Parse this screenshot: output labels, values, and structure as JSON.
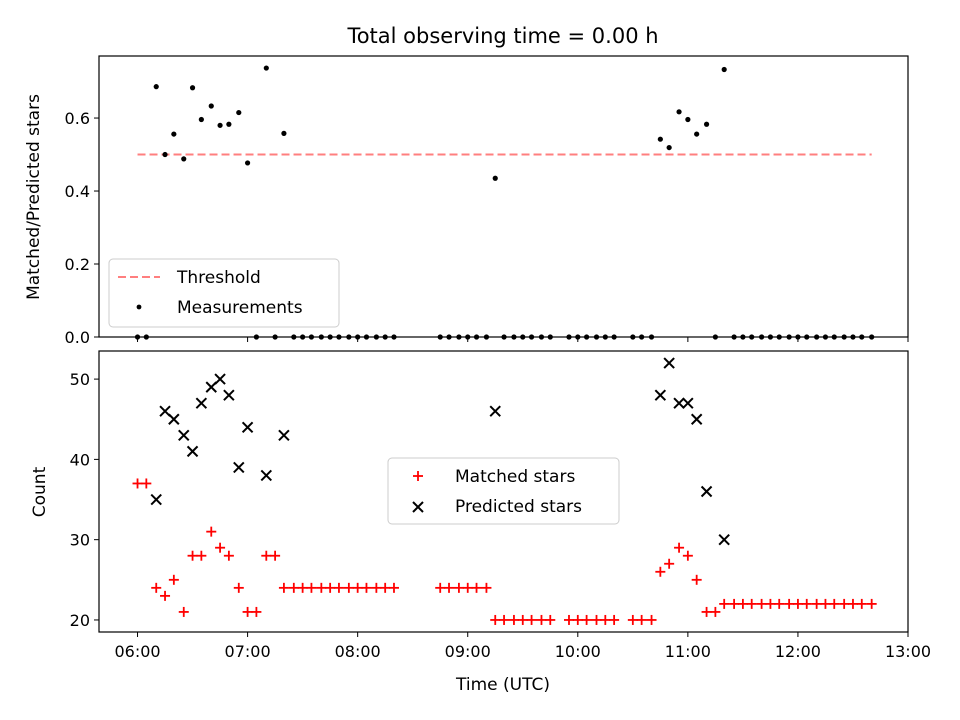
{
  "chart_data": [
    {
      "type": "scatter",
      "title": "Total observing time = 0.00 h",
      "ylabel": "Matched/Predicted stars",
      "xlim": [
        5.65,
        13.0
      ],
      "ylim": [
        0.0,
        0.77
      ],
      "yticks": [
        "0.0",
        "0.2",
        "0.4",
        "0.6"
      ],
      "ytick_values": [
        0.0,
        0.2,
        0.4,
        0.6
      ],
      "legend_position": "lower-left",
      "threshold": {
        "name": "Threshold",
        "value": 0.5,
        "x_range": [
          6.0,
          12.67
        ],
        "color": "#ff7f7f",
        "style": "dashed"
      },
      "measurements": {
        "name": "Measurements",
        "color": "#000000",
        "x": [
          6.0,
          6.08,
          6.17,
          6.25,
          6.33,
          6.42,
          6.5,
          6.58,
          6.67,
          6.75,
          6.83,
          6.92,
          7.0,
          7.08,
          7.17,
          7.25,
          7.33,
          7.42,
          7.5,
          7.58,
          7.67,
          7.75,
          7.83,
          7.92,
          8.0,
          8.08,
          8.17,
          8.25,
          8.33,
          8.75,
          8.83,
          8.92,
          9.0,
          9.08,
          9.17,
          9.25,
          9.33,
          9.42,
          9.5,
          9.58,
          9.67,
          9.75,
          9.92,
          10.0,
          10.08,
          10.17,
          10.25,
          10.33,
          10.5,
          10.58,
          10.67,
          10.75,
          10.83,
          10.92,
          11.0,
          11.08,
          11.17,
          11.25,
          11.33,
          11.42,
          11.5,
          11.58,
          11.67,
          11.75,
          11.83,
          11.92,
          12.0,
          12.08,
          12.17,
          12.25,
          12.33,
          12.42,
          12.5,
          12.58,
          12.67
        ],
        "y": [
          0.0,
          0.0,
          0.686,
          0.5,
          0.556,
          0.488,
          0.683,
          0.596,
          0.633,
          0.58,
          0.583,
          0.615,
          0.477,
          0.0,
          0.737,
          0.0,
          0.558,
          0.0,
          0.0,
          0.0,
          0.0,
          0.0,
          0.0,
          0.0,
          0.0,
          0.0,
          0.0,
          0.0,
          0.0,
          0.0,
          0.0,
          0.0,
          0.0,
          0.0,
          0.0,
          0.435,
          0.0,
          0.0,
          0.0,
          0.0,
          0.0,
          0.0,
          0.0,
          0.0,
          0.0,
          0.0,
          0.0,
          0.0,
          0.0,
          0.0,
          0.0,
          0.542,
          0.519,
          0.617,
          0.596,
          0.556,
          0.583,
          0.0,
          0.733,
          0.0,
          0.0,
          0.0,
          0.0,
          0.0,
          0.0,
          0.0,
          0.0,
          0.0,
          0.0,
          0.0,
          0.0,
          0.0,
          0.0,
          0.0,
          0.0
        ]
      }
    },
    {
      "type": "scatter",
      "xlabel": "Time (UTC)",
      "ylabel": "Count",
      "xlim": [
        5.65,
        13.0
      ],
      "ylim": [
        18.5,
        53.5
      ],
      "yticks": [
        "20",
        "30",
        "40",
        "50"
      ],
      "ytick_values": [
        20,
        30,
        40,
        50
      ],
      "xticks": [
        "06:00",
        "07:00",
        "08:00",
        "09:00",
        "10:00",
        "11:00",
        "12:00",
        "13:00"
      ],
      "xtick_values": [
        6,
        7,
        8,
        9,
        10,
        11,
        12,
        13
      ],
      "legend_position": "center",
      "series": [
        {
          "name": "Matched stars",
          "marker": "plus",
          "color": "#ff0000",
          "x": [
            6.0,
            6.08,
            6.17,
            6.25,
            6.33,
            6.42,
            6.5,
            6.58,
            6.67,
            6.75,
            6.83,
            6.92,
            7.0,
            7.08,
            7.17,
            7.25,
            7.33,
            7.42,
            7.5,
            7.58,
            7.67,
            7.75,
            7.83,
            7.92,
            8.0,
            8.08,
            8.17,
            8.25,
            8.33,
            8.75,
            8.83,
            8.92,
            9.0,
            9.08,
            9.17,
            9.25,
            9.33,
            9.42,
            9.5,
            9.58,
            9.67,
            9.75,
            9.92,
            10.0,
            10.08,
            10.17,
            10.25,
            10.33,
            10.5,
            10.58,
            10.67,
            10.75,
            10.83,
            10.92,
            11.0,
            11.08,
            11.17,
            11.25,
            11.33,
            11.42,
            11.5,
            11.58,
            11.67,
            11.75,
            11.83,
            11.92,
            12.0,
            12.08,
            12.17,
            12.25,
            12.33,
            12.42,
            12.5,
            12.58,
            12.67
          ],
          "y": [
            37,
            37,
            24,
            23,
            25,
            21,
            28,
            28,
            31,
            29,
            28,
            24,
            21,
            21,
            28,
            28,
            24,
            24,
            24,
            24,
            24,
            24,
            24,
            24,
            24,
            24,
            24,
            24,
            24,
            24,
            24,
            24,
            24,
            24,
            24,
            20,
            20,
            20,
            20,
            20,
            20,
            20,
            20,
            20,
            20,
            20,
            20,
            20,
            20,
            20,
            20,
            26,
            27,
            29,
            28,
            25,
            21,
            21,
            22,
            22,
            22,
            22,
            22,
            22,
            22,
            22,
            22,
            22,
            22,
            22,
            22,
            22,
            22,
            22,
            22
          ]
        },
        {
          "name": "Predicted stars",
          "marker": "x",
          "color": "#000000",
          "x": [
            6.17,
            6.25,
            6.33,
            6.42,
            6.5,
            6.58,
            6.67,
            6.75,
            6.83,
            6.92,
            7.0,
            7.17,
            7.33,
            9.25,
            10.75,
            10.83,
            10.92,
            11.0,
            11.08,
            11.17,
            11.33
          ],
          "y": [
            35,
            46,
            45,
            43,
            41,
            47,
            49,
            50,
            48,
            39,
            44,
            38,
            43,
            46,
            48,
            52,
            47,
            47,
            45,
            36,
            30
          ]
        }
      ]
    }
  ]
}
